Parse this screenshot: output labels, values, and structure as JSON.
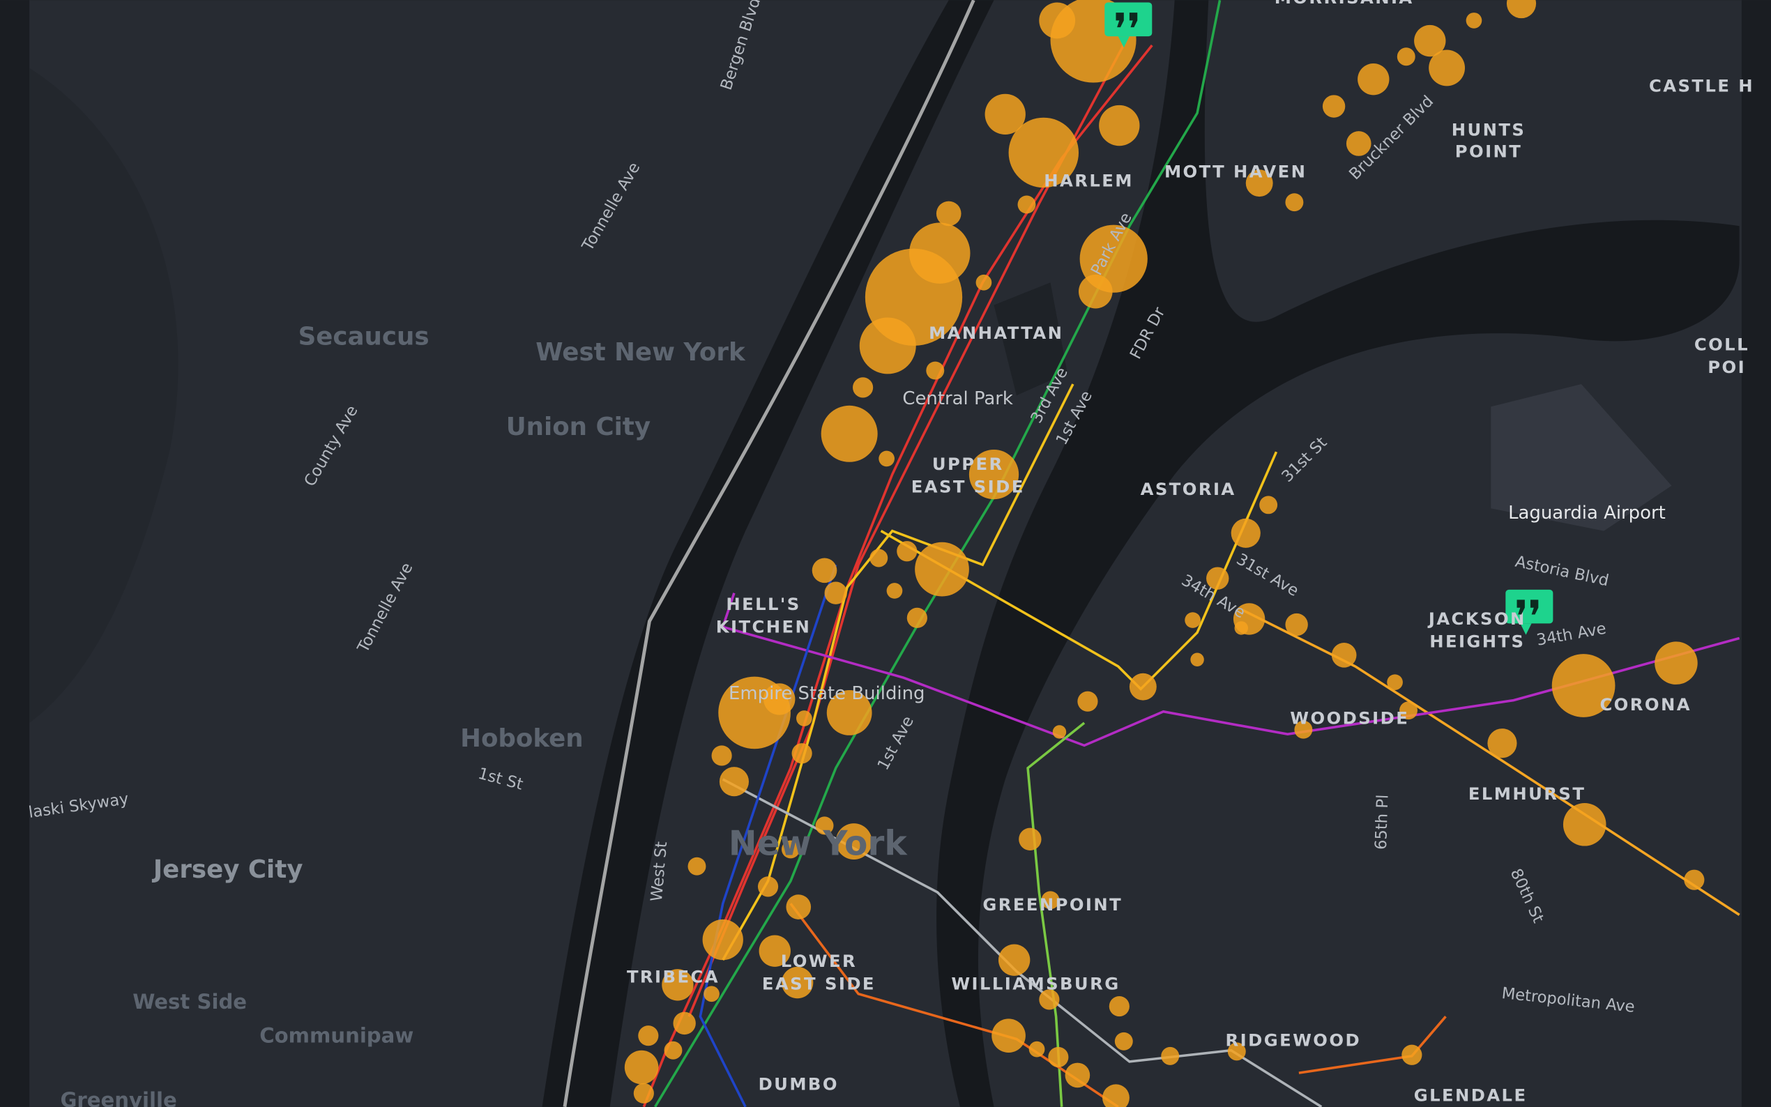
{
  "labels": [
    "Bergen Blvd",
    "Tonnelle Ave",
    "Secaucus",
    "West New York",
    "Union City",
    "County Ave",
    "Tonnelle Ave",
    "Hoboken",
    "1st St",
    "laski Skyway",
    "Jersey City",
    "West Side",
    "Communipaw",
    "Greenville",
    "MORRISANIA",
    "HARLEM",
    "MOTT HAVEN",
    [
      "HUNTS",
      "POINT"
    ],
    "CASTLE H",
    "Bruckner Blvd",
    "Park Ave",
    "FDR Dr",
    "MANHATTAN",
    "Central Park",
    "3rd Ave",
    "1st Ave",
    [
      "UPPER",
      "EAST SIDE"
    ],
    "ASTORIA",
    "31st St",
    "Laguardia Airport",
    "Astoria Blvd",
    [
      "COLL",
      "POI"
    ],
    "31st Ave",
    "34th Ave",
    [
      "JACKSON",
      "HEIGHTS"
    ],
    "34th Ave",
    "CORONA",
    [
      "HELL'S",
      "KITCHEN"
    ],
    "Empire State Building",
    "1st Ave",
    "WOODSIDE",
    "ELMHURST",
    "65th Pl",
    "80th St",
    "New York",
    "West St",
    "GREENPOINT",
    "TRIBECA",
    [
      "LOWER",
      "EAST SIDE"
    ],
    "WILLIAMSBURG",
    "Metropolitan Ave",
    "RIDGEWOOD",
    "DUMBO",
    "GLENDALE"
  ]
}
